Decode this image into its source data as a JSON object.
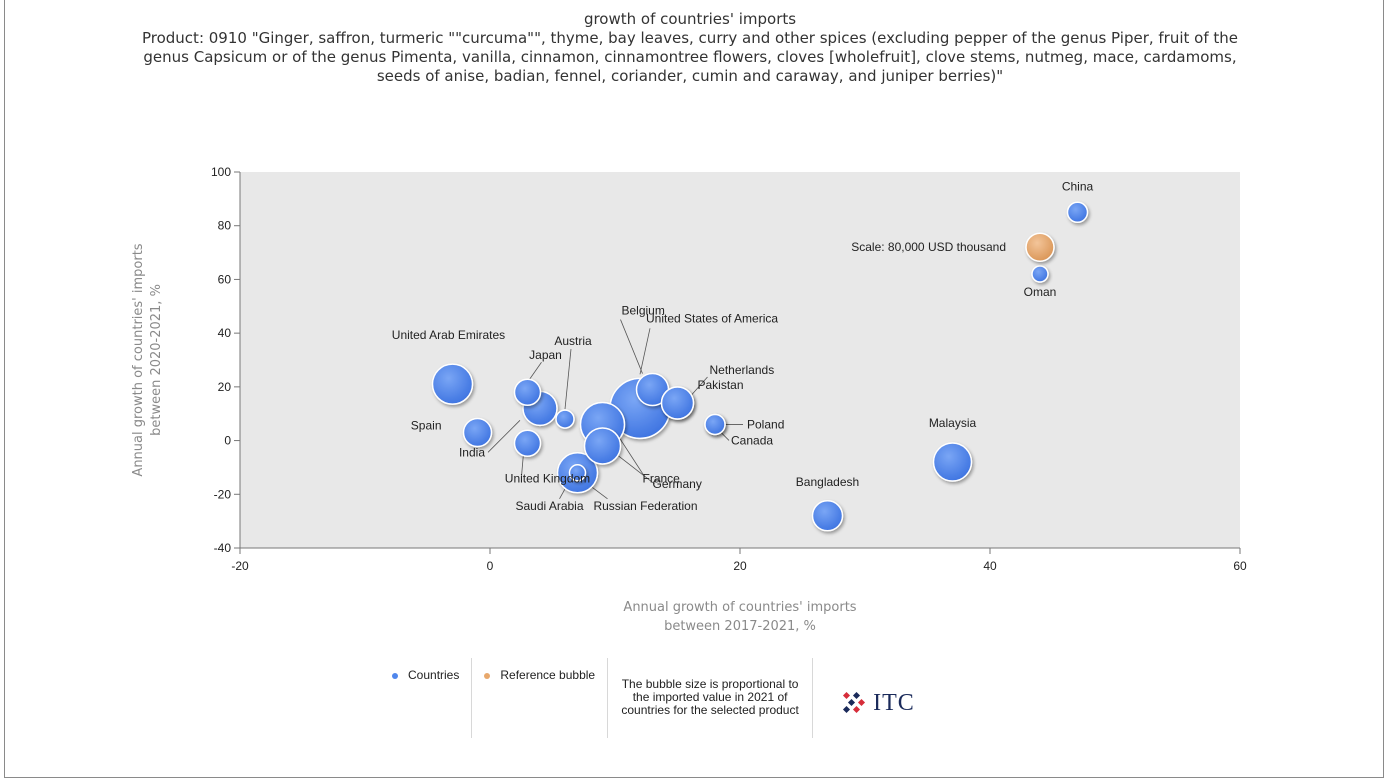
{
  "title": "growth of countries' imports",
  "subtitle": "Product: 0910 \"Ginger, saffron, turmeric \"\"curcuma\"\", thyme, bay leaves, curry and other spices (excluding pepper of the genus Piper, fruit of the genus Capsicum or of the genus Pimenta, vanilla, cinnamon, cinnamontree flowers, cloves [wholefruit], clove stems, nutmeg, mace, cardamoms, seeds of anise, badian, fennel, coriander, cumin and caraway, and juniper berries)\"",
  "legend": {
    "countries": "Countries",
    "reference": "Reference bubble",
    "note": "The bubble size is proportional to the imported value in 2021 of countries for the selected product",
    "logo_text": "ITC"
  },
  "colors": {
    "countries": "#4f86ec",
    "reference": "#e8a86c",
    "plot_bg": "#e8e8e8"
  },
  "chart_data": {
    "type": "scatter",
    "xlabel": "Annual growth of countries' imports between 2017-2021, %",
    "ylabel": "Annual growth of countries' imports between 2020-2021, %",
    "xlim": [
      -20,
      60
    ],
    "ylim": [
      -40,
      100
    ],
    "xticks": [
      -20,
      0,
      20,
      40,
      60
    ],
    "yticks": [
      100,
      80,
      60,
      40,
      20,
      0,
      -20,
      -40
    ],
    "grid": false,
    "series": [
      {
        "name": "Countries",
        "points": [
          {
            "label": "China",
            "x": 47,
            "y": 85,
            "size": 10
          },
          {
            "label": "Oman",
            "x": 44,
            "y": 62,
            "size": 8
          },
          {
            "label": "Malaysia",
            "x": 37,
            "y": -8,
            "size": 19
          },
          {
            "label": "Bangladesh",
            "x": 27,
            "y": -28,
            "size": 15
          },
          {
            "label": "United Arab Emirates",
            "x": -3,
            "y": 21,
            "size": 20
          },
          {
            "label": "Spain",
            "x": -1,
            "y": 3,
            "size": 14
          },
          {
            "label": "Japan",
            "x": 3,
            "y": 18,
            "size": 13
          },
          {
            "label": "United Kingdom",
            "x": 3,
            "y": -1,
            "size": 13
          },
          {
            "label": "India",
            "x": 4,
            "y": 12,
            "size": 17
          },
          {
            "label": "Austria",
            "x": 6,
            "y": 8,
            "size": 9
          },
          {
            "label": "Saudi Arabia",
            "x": 7,
            "y": -12,
            "size": 20
          },
          {
            "label": "Russian Federation",
            "x": 7,
            "y": -12,
            "size": 8
          },
          {
            "label": "France",
            "x": 9,
            "y": 6,
            "size": 22
          },
          {
            "label": "Germany",
            "x": 9,
            "y": -2,
            "size": 18
          },
          {
            "label": "United States of America",
            "x": 12,
            "y": 12,
            "size": 30
          },
          {
            "label": "Belgium",
            "x": 13,
            "y": 19,
            "size": 16
          },
          {
            "label": "Netherlands",
            "x": 15,
            "y": 14,
            "size": 16
          },
          {
            "label": "Pakistan",
            "x": 15,
            "y": 14,
            "size": 16
          },
          {
            "label": "Poland",
            "x": 18,
            "y": 6,
            "size": 10
          },
          {
            "label": "Canada",
            "x": 18,
            "y": 6,
            "size": 10
          }
        ]
      },
      {
        "name": "Reference bubble",
        "points": [
          {
            "label": "Scale: 80,000 USD thousand",
            "x": 44,
            "y": 72,
            "size": 14
          }
        ]
      }
    ]
  }
}
